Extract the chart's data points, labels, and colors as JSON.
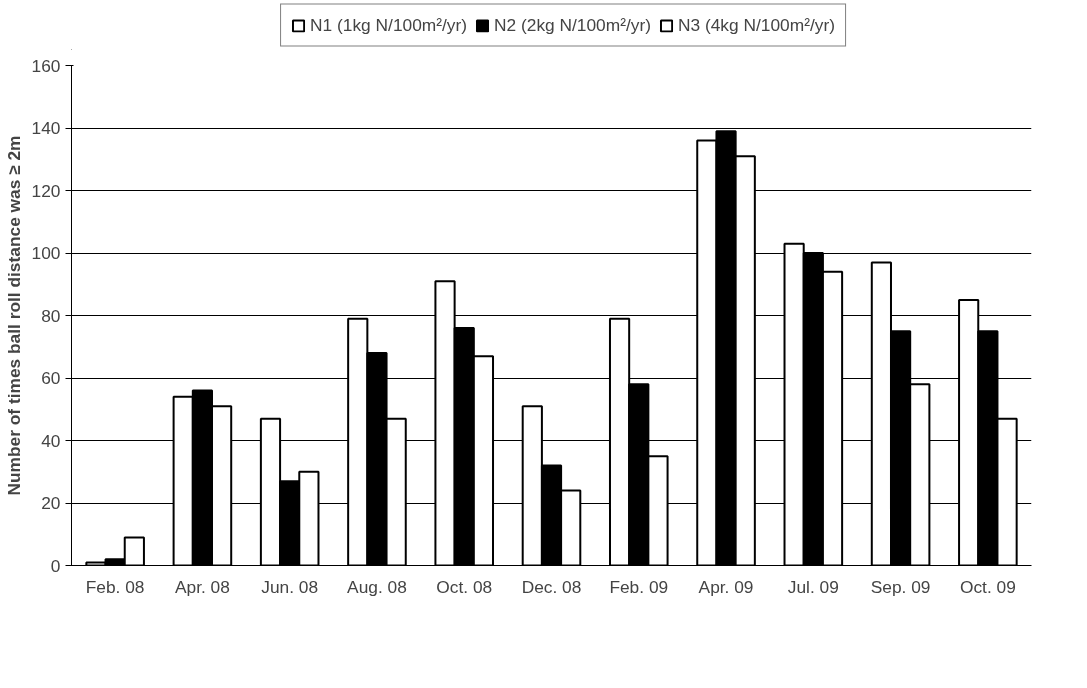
{
  "chart_data": {
    "type": "bar",
    "ylabel": "Number of times ball roll distance was ≥ 2m",
    "categories": [
      "Feb. 08",
      "Apr. 08",
      "Jun. 08",
      "Aug. 08",
      "Oct. 08",
      "Dec. 08",
      "Feb. 09",
      "Apr. 09",
      "Jul. 09",
      "Sep. 09",
      "Oct. 09"
    ],
    "series": [
      {
        "name": "N1 (1kg N/100m²/yr)",
        "color": "#ffffff",
        "values": [
          1,
          54,
          47,
          79,
          91,
          51,
          79,
          136,
          103,
          97,
          85
        ]
      },
      {
        "name": "N2 (2kg N/100m²/yr)",
        "color": "#000000",
        "values": [
          2,
          56,
          27,
          68,
          76,
          32,
          58,
          139,
          100,
          75,
          75
        ]
      },
      {
        "name": "N3 (4kg N/100m²/yr)",
        "color": "#ffffff",
        "values": [
          9,
          51,
          30,
          47,
          67,
          24,
          35,
          131,
          94,
          58,
          47
        ]
      }
    ],
    "ylim": [
      0,
      160
    ],
    "yticks": [
      0,
      20,
      40,
      60,
      80,
      100,
      120,
      140,
      160
    ],
    "grid": "y",
    "legend": "top"
  }
}
